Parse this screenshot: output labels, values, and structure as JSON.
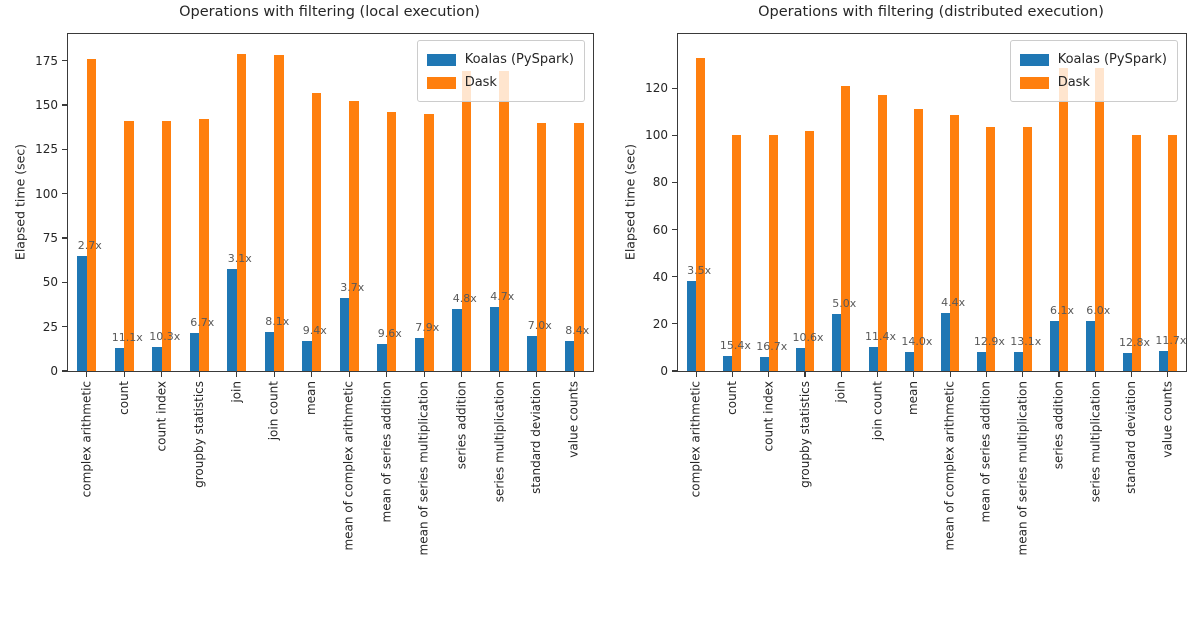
{
  "colors": {
    "koalas": "#1f77b4",
    "dask": "#ff7f0e",
    "annotation": "#595959",
    "axis": "#3a3a3a"
  },
  "legend": {
    "position": "upper right",
    "items": [
      {
        "label": "Koalas (PySpark)",
        "color_key": "koalas"
      },
      {
        "label": "Dask",
        "color_key": "dask"
      }
    ]
  },
  "chart_data": [
    {
      "type": "bar",
      "title": "Operations with filtering (local execution)",
      "xlabel": "",
      "ylabel": "Elapsed time (sec)",
      "ylim": [
        0,
        190
      ],
      "yticks": [
        0,
        25,
        50,
        75,
        100,
        125,
        150,
        175
      ],
      "grid": false,
      "legend_position": "upper right",
      "categories": [
        "complex arithmetic",
        "count",
        "count index",
        "groupby statistics",
        "join",
        "join count",
        "mean",
        "mean of complex arithmetic",
        "mean of series addition",
        "mean of series multiplication",
        "series addition",
        "series multiplication",
        "standard deviation",
        "value counts"
      ],
      "series": [
        {
          "name": "Koalas (PySpark)",
          "values": [
            65,
            12.7,
            13.7,
            21.2,
            57.5,
            22,
            16.7,
            41.2,
            15.2,
            18.4,
            35.2,
            36,
            20,
            16.7
          ]
        },
        {
          "name": "Dask",
          "values": [
            176,
            141,
            141,
            142,
            179,
            178,
            157,
            152,
            146,
            145,
            169,
            169,
            140,
            140
          ]
        }
      ],
      "annotations": [
        "2.7x",
        "11.1x",
        "10.3x",
        "6.7x",
        "3.1x",
        "8.1x",
        "9.4x",
        "3.7x",
        "9.6x",
        "7.9x",
        "4.8x",
        "4.7x",
        "7.0x",
        "8.4x"
      ]
    },
    {
      "type": "bar",
      "title": "Operations with filtering (distributed execution)",
      "xlabel": "",
      "ylabel": "Elapsed time (sec)",
      "ylim": [
        0,
        143
      ],
      "yticks": [
        0,
        20,
        40,
        60,
        80,
        100,
        120
      ],
      "grid": false,
      "legend_position": "upper right",
      "categories": [
        "complex arithmetic",
        "count",
        "count index",
        "groupby statistics",
        "join",
        "join count",
        "mean",
        "mean of complex arithmetic",
        "mean of series addition",
        "mean of series multiplication",
        "series addition",
        "series multiplication",
        "standard deviation",
        "value counts"
      ],
      "series": [
        {
          "name": "Koalas (PySpark)",
          "values": [
            38,
            6.5,
            6,
            9.6,
            24.2,
            10.3,
            7.9,
            24.7,
            8,
            7.9,
            21.1,
            21.4,
            7.8,
            8.6
          ]
        },
        {
          "name": "Dask",
          "values": [
            133,
            100,
            100,
            102,
            121,
            117,
            111,
            108.5,
            103.5,
            103.5,
            128.5,
            128.5,
            100,
            100
          ]
        }
      ],
      "annotations": [
        "3.5x",
        "15.4x",
        "16.7x",
        "10.6x",
        "5.0x",
        "11.4x",
        "14.0x",
        "4.4x",
        "12.9x",
        "13.1x",
        "6.1x",
        "6.0x",
        "12.8x",
        "11.7x"
      ]
    }
  ]
}
